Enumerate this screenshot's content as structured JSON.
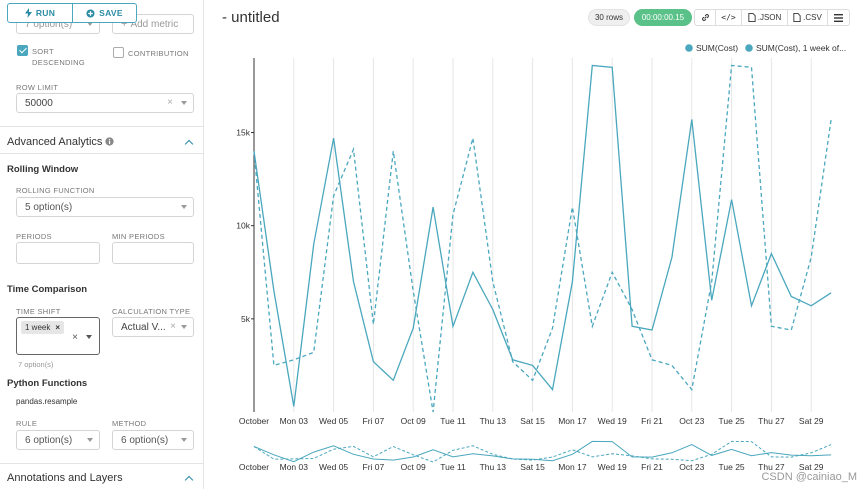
{
  "toolbar": {
    "run_label": "RUN",
    "save_label": "SAVE"
  },
  "panel": {
    "metrics_select_value": "7 option(s)",
    "add_metric_label": "Add metric",
    "sort_descending_label": "SORT DESCENDING",
    "contribution_label": "CONTRIBUTION",
    "row_limit_label": "ROW LIMIT",
    "row_limit_value": "50000",
    "advanced_analytics_label": "Advanced Analytics",
    "rolling_window_label": "Rolling Window",
    "rolling_function_label": "ROLLING FUNCTION",
    "rolling_function_value": "5 option(s)",
    "periods_label": "PERIODS",
    "min_periods_label": "MIN PERIODS",
    "time_comparison_label": "Time Comparison",
    "time_shift_label": "TIME SHIFT",
    "time_shift_tag": "1 week",
    "time_shift_options_note": "7 option(s)",
    "calculation_type_label": "CALCULATION TYPE",
    "calculation_type_value": "Actual V...",
    "python_functions_label": "Python Functions",
    "pandas_resample_label": "pandas.resample",
    "rule_label": "RULE",
    "rule_value": "6 option(s)",
    "method_label": "METHOD",
    "method_value": "6 option(s)",
    "annotations_label": "Annotations and Layers"
  },
  "header": {
    "title": "- untitled",
    "rows_badge": "30 rows",
    "timer_badge": "00:00:00.15",
    "json_label": ".JSON",
    "csv_label": ".CSV"
  },
  "watermark": "CSDN @cainiao_M",
  "chart_data": {
    "type": "line",
    "x": [
      "Oct 01",
      "Oct 02",
      "Oct 03",
      "Oct 04",
      "Oct 05",
      "Oct 06",
      "Oct 07",
      "Oct 08",
      "Oct 09",
      "Oct 10",
      "Oct 11",
      "Oct 12",
      "Oct 13",
      "Oct 14",
      "Oct 15",
      "Oct 16",
      "Oct 17",
      "Oct 18",
      "Oct 19",
      "Oct 20",
      "Oct 21",
      "Oct 22",
      "Oct 23",
      "Oct 24",
      "Oct 25",
      "Oct 26",
      "Oct 27",
      "Oct 28",
      "Oct 29",
      "Oct 30",
      "Oct 31"
    ],
    "x_tick_labels": [
      "October",
      "Mon 03",
      "Wed 05",
      "Fri 07",
      "Oct 09",
      "Tue 11",
      "Thu 13",
      "Sat 15",
      "Mon 17",
      "Wed 19",
      "Fri 21",
      "Oct 23",
      "Tue 25",
      "Thu 27",
      "Sat 29"
    ],
    "x_tick_positions": [
      0,
      2,
      4,
      6,
      8,
      10,
      12,
      14,
      16,
      18,
      20,
      22,
      24,
      26,
      28
    ],
    "series": [
      {
        "name": "SUM(Cost)",
        "style": "solid",
        "values": [
          14000,
          6500,
          300,
          9000,
          14700,
          7000,
          2700,
          1700,
          4500,
          11000,
          4600,
          7500,
          5500,
          2800,
          2500,
          1200,
          7000,
          18600,
          18500,
          4600,
          4400,
          8300,
          15700,
          6000,
          11400,
          5700,
          8500,
          6200,
          5700,
          6400,
          0
        ]
      },
      {
        "name": "SUM(Cost), 1 week of...",
        "style": "dashed",
        "values": [
          14000,
          2500,
          2800,
          3200,
          11600,
          14100,
          4700,
          14000,
          6500,
          0,
          10600,
          14700,
          7000,
          2700,
          1700,
          4500,
          11000,
          4600,
          7500,
          5500,
          2800,
          2500,
          1200,
          7000,
          18600,
          18500,
          4600,
          4400,
          8300,
          15700,
          0
        ]
      }
    ],
    "y_ticks": [
      "5k",
      "10k",
      "15k"
    ],
    "y_tick_values": [
      5000,
      10000,
      15000
    ],
    "ylim": [
      0,
      19000
    ],
    "legend_position": "top-right",
    "colors": {
      "series1": "#4aa7bd",
      "series2": "#4aa7bd"
    },
    "grid": true
  }
}
